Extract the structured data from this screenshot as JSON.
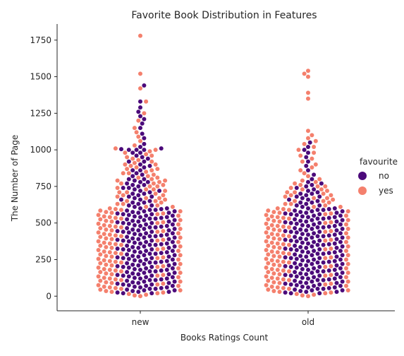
{
  "chart_data": {
    "type": "scatter",
    "kind": "swarm",
    "title": "Favorite Book Distribution in Features",
    "xlabel": "Books Ratings Count",
    "ylabel": "The Number of Page",
    "categories": [
      "new",
      "old"
    ],
    "ylim": [
      -100,
      1860
    ],
    "yticks": [
      0,
      250,
      500,
      750,
      1000,
      1250,
      1500,
      1750
    ],
    "ytick_labels": [
      "0",
      "250",
      "500",
      "750",
      "1000",
      "1250",
      "1500",
      "1750"
    ],
    "grid": false,
    "legend": {
      "title": "favourite",
      "placement": "right",
      "entries": [
        {
          "label": "no",
          "color": "#4b0a7a"
        },
        {
          "label": "yes",
          "color": "#f4806d"
        }
      ]
    },
    "series": [
      {
        "name": "no",
        "color": "#4b0a7a",
        "points": {
          "new": [
            20,
            25,
            30,
            35,
            40,
            45,
            50,
            55,
            60,
            65,
            70,
            75,
            80,
            85,
            90,
            95,
            100,
            105,
            110,
            115,
            120,
            125,
            130,
            135,
            140,
            145,
            150,
            155,
            160,
            165,
            170,
            175,
            180,
            185,
            190,
            195,
            200,
            205,
            210,
            215,
            220,
            225,
            230,
            235,
            240,
            245,
            250,
            255,
            260,
            265,
            270,
            275,
            280,
            285,
            290,
            295,
            300,
            305,
            310,
            315,
            320,
            325,
            330,
            335,
            340,
            345,
            350,
            355,
            360,
            365,
            370,
            375,
            380,
            385,
            390,
            395,
            400,
            405,
            410,
            415,
            420,
            425,
            430,
            435,
            440,
            445,
            450,
            455,
            460,
            465,
            470,
            475,
            480,
            485,
            490,
            495,
            500,
            505,
            510,
            515,
            520,
            525,
            530,
            535,
            540,
            545,
            550,
            555,
            560,
            565,
            570,
            575,
            580,
            585,
            590,
            595,
            600,
            610,
            620,
            630,
            640,
            650,
            660,
            670,
            680,
            690,
            700,
            710,
            720,
            730,
            740,
            750,
            760,
            770,
            780,
            790,
            800,
            820,
            840,
            860,
            880,
            900,
            920,
            940,
            960,
            980,
            1000,
            1000,
            1005,
            1010,
            1020,
            1040,
            1080,
            1110,
            1150,
            1180,
            1210,
            1230,
            1260,
            1290,
            1330,
            1440,
            20,
            30,
            40,
            50,
            60,
            70,
            80,
            90,
            100,
            110,
            120,
            130,
            140,
            150,
            160,
            170,
            180,
            190,
            200,
            210,
            220,
            230,
            240,
            250,
            260,
            270,
            280,
            290,
            300,
            310,
            320,
            330,
            340,
            350,
            360,
            370,
            380,
            390,
            400,
            410,
            420,
            430,
            440,
            450,
            460,
            470,
            480,
            490,
            500,
            510,
            520,
            530,
            540,
            550,
            560,
            570,
            580,
            590,
            600,
            620,
            640,
            660,
            680,
            700,
            720,
            740,
            760,
            780,
            800,
            830,
            860,
            890,
            920,
            950,
            980,
            1000
          ],
          "old": [
            20,
            25,
            30,
            35,
            40,
            45,
            50,
            55,
            60,
            65,
            70,
            75,
            80,
            85,
            90,
            95,
            100,
            105,
            110,
            115,
            120,
            125,
            130,
            135,
            140,
            145,
            150,
            155,
            160,
            165,
            170,
            175,
            180,
            185,
            190,
            195,
            200,
            205,
            210,
            215,
            220,
            225,
            230,
            235,
            240,
            245,
            250,
            255,
            260,
            265,
            270,
            275,
            280,
            285,
            290,
            295,
            300,
            305,
            310,
            315,
            320,
            325,
            330,
            335,
            340,
            345,
            350,
            355,
            360,
            365,
            370,
            375,
            380,
            385,
            390,
            395,
            400,
            405,
            410,
            415,
            420,
            425,
            430,
            435,
            440,
            445,
            450,
            455,
            460,
            465,
            470,
            475,
            480,
            485,
            490,
            495,
            500,
            505,
            510,
            515,
            520,
            525,
            530,
            535,
            540,
            545,
            550,
            555,
            560,
            565,
            570,
            575,
            580,
            585,
            590,
            595,
            600,
            610,
            620,
            630,
            640,
            650,
            660,
            670,
            680,
            690,
            700,
            710,
            720,
            730,
            740,
            750,
            760,
            770,
            780,
            800,
            830,
            860,
            890,
            920,
            950,
            980,
            1000,
            1020,
            1050,
            20,
            30,
            40,
            50,
            60,
            70,
            80,
            90,
            100,
            110,
            120,
            130,
            140,
            150,
            160,
            170,
            180,
            190,
            200,
            210,
            220,
            230,
            240,
            250,
            260,
            270,
            280,
            290,
            300,
            310,
            320,
            330,
            340,
            350,
            360,
            370,
            380,
            390,
            400,
            410,
            420,
            430,
            440,
            450,
            460,
            470,
            480,
            490,
            500,
            510,
            520,
            530,
            540,
            550,
            560,
            570,
            580,
            590,
            600,
            620,
            640,
            660,
            680,
            700
          ]
        }
      },
      {
        "name": "yes",
        "color": "#f4806d",
        "points": {
          "new": [
            0,
            10,
            20,
            30,
            40,
            50,
            60,
            70,
            80,
            90,
            100,
            110,
            120,
            130,
            140,
            150,
            160,
            170,
            180,
            190,
            200,
            210,
            220,
            230,
            240,
            250,
            260,
            270,
            280,
            290,
            300,
            310,
            320,
            330,
            340,
            350,
            360,
            370,
            380,
            390,
            400,
            410,
            420,
            430,
            440,
            450,
            460,
            470,
            480,
            490,
            500,
            510,
            520,
            530,
            540,
            550,
            560,
            570,
            580,
            590,
            600,
            610,
            620,
            630,
            640,
            650,
            660,
            670,
            680,
            690,
            700,
            710,
            720,
            730,
            740,
            750,
            760,
            770,
            780,
            790,
            800,
            810,
            820,
            830,
            840,
            850,
            860,
            870,
            880,
            890,
            900,
            910,
            920,
            930,
            940,
            950,
            960,
            970,
            980,
            990,
            1000,
            1010,
            1030,
            1060,
            1090,
            1120,
            1150,
            1200,
            1250,
            1330,
            1420,
            1520,
            1780,
            5,
            15,
            25,
            35,
            45,
            55,
            65,
            75,
            85,
            95,
            105,
            115,
            125,
            135,
            145,
            155,
            165,
            175,
            185,
            195,
            205,
            215,
            225,
            235,
            245,
            255,
            265,
            275,
            285,
            295,
            305,
            315,
            325,
            335,
            345,
            355,
            365,
            375,
            385,
            395,
            405,
            415,
            425,
            435,
            445,
            455,
            465,
            475,
            485,
            495,
            505,
            515,
            525,
            535,
            545,
            555,
            565,
            575,
            585,
            595,
            610,
            630,
            650,
            670,
            690,
            710,
            730,
            750,
            770,
            790,
            810,
            840,
            870,
            900
          ],
          "old": [
            0,
            10,
            20,
            30,
            40,
            50,
            60,
            70,
            80,
            90,
            100,
            110,
            120,
            130,
            140,
            150,
            160,
            170,
            180,
            190,
            200,
            210,
            220,
            230,
            240,
            250,
            260,
            270,
            280,
            290,
            300,
            310,
            320,
            330,
            340,
            350,
            360,
            370,
            380,
            390,
            400,
            410,
            420,
            430,
            440,
            450,
            460,
            470,
            480,
            490,
            500,
            510,
            520,
            530,
            540,
            550,
            560,
            570,
            580,
            590,
            600,
            610,
            620,
            630,
            640,
            650,
            660,
            670,
            680,
            690,
            700,
            710,
            720,
            730,
            740,
            750,
            760,
            770,
            780,
            790,
            800,
            820,
            840,
            860,
            880,
            900,
            920,
            940,
            960,
            980,
            1000,
            1020,
            1040,
            1060,
            1080,
            1100,
            1130,
            1350,
            1390,
            1500,
            1520,
            1540,
            5,
            15,
            25,
            35,
            45,
            55,
            65,
            75,
            85,
            95,
            105,
            115,
            125,
            135,
            145,
            155,
            165,
            175,
            185,
            195,
            205,
            215,
            225,
            235,
            245,
            255,
            265,
            275,
            285,
            295,
            305,
            315,
            325,
            335,
            345,
            355,
            365,
            375,
            385,
            395,
            405,
            415,
            425,
            435,
            445,
            455,
            465,
            475,
            485,
            495,
            505,
            515,
            525,
            535,
            545,
            555,
            565,
            575,
            585,
            595,
            610,
            630,
            650,
            670,
            690,
            710,
            730,
            750
          ]
        }
      }
    ]
  }
}
